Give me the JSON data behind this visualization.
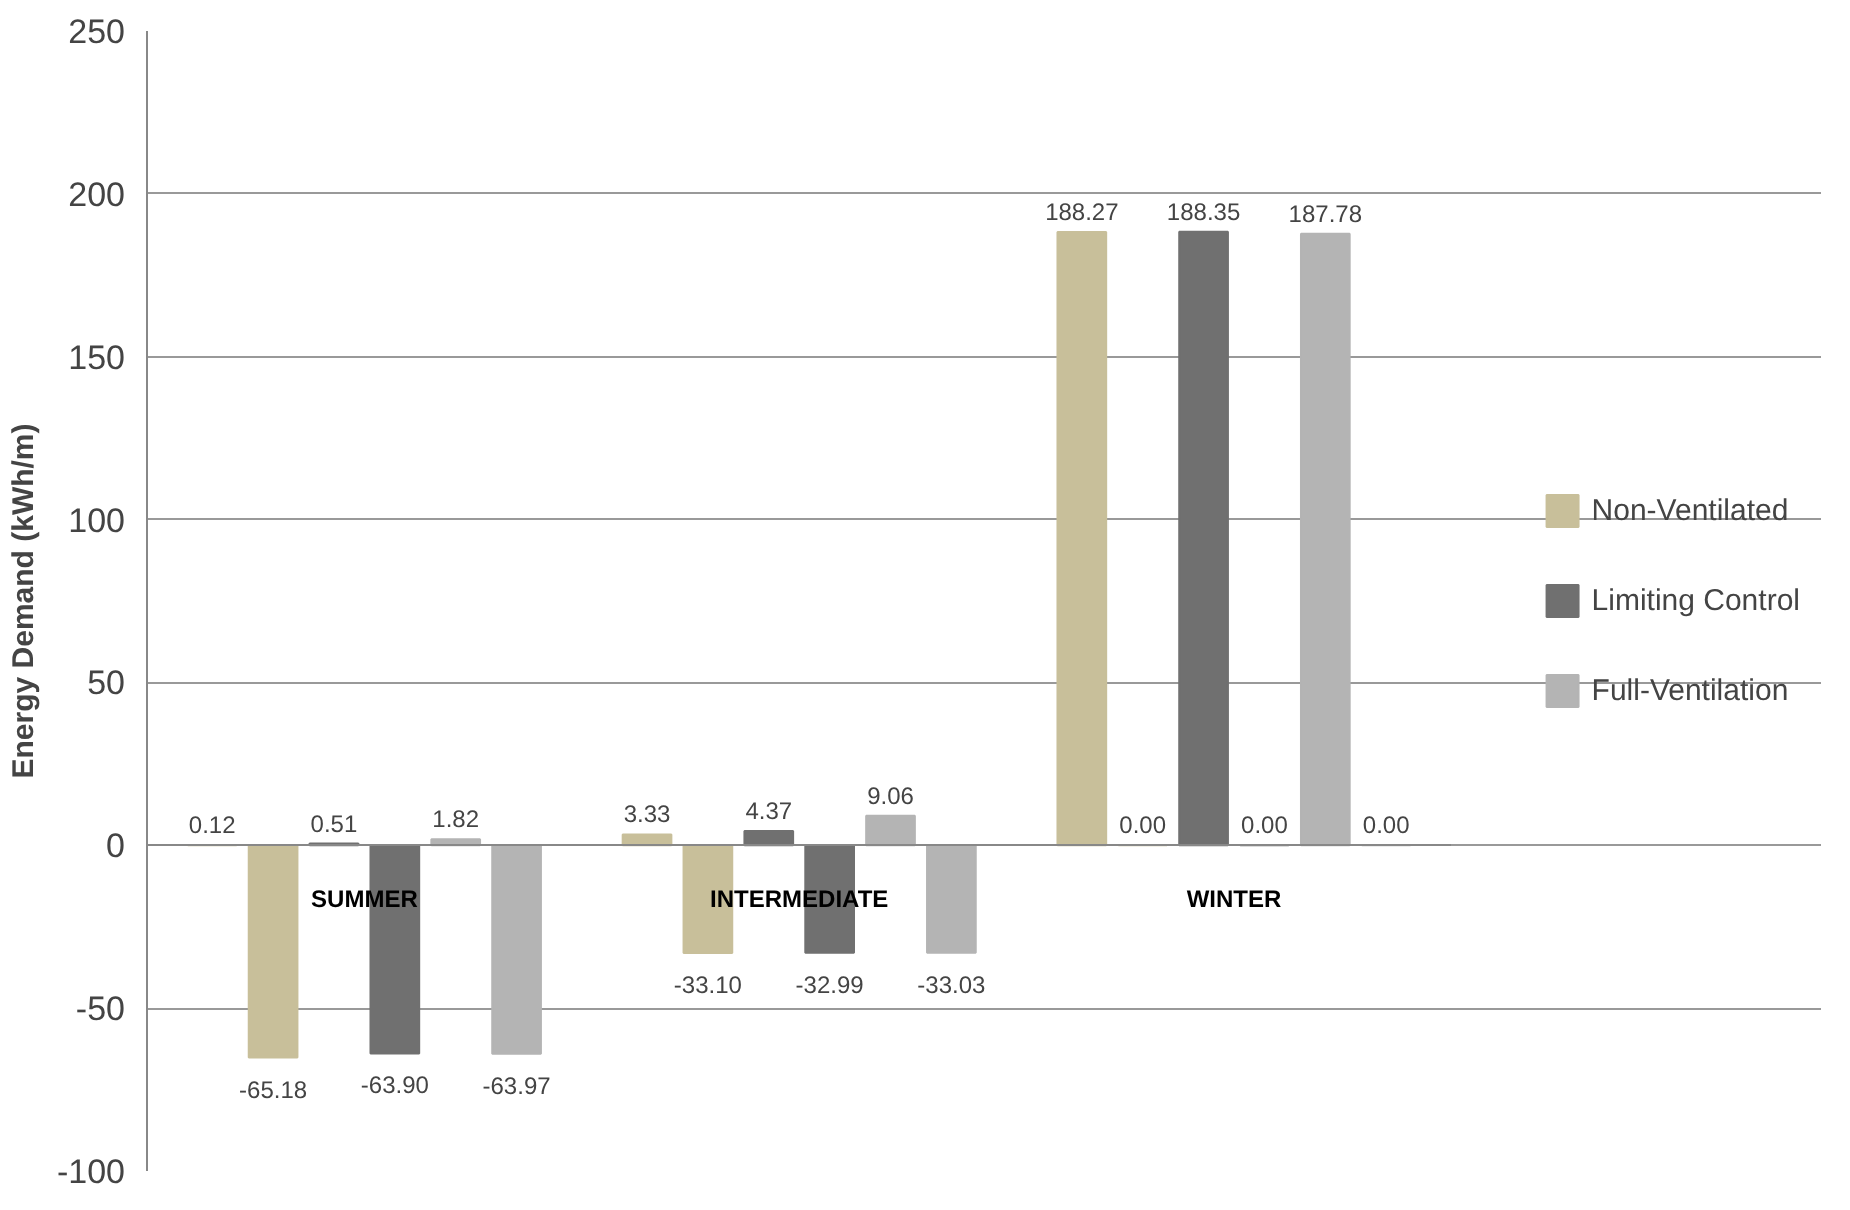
{
  "chart_data": {
    "type": "bar",
    "ylabel": "Energy Demand (kWh/m)",
    "categories": [
      "SUMMER",
      "INTERMEDIATE",
      "WINTER"
    ],
    "series": [
      {
        "name": "Non-Ventilated",
        "color": "#c8bf9a",
        "values": [
          0.12,
          3.33,
          188.27
        ],
        "value_labels": [
          "0.12",
          "3.33",
          "188.27"
        ]
      },
      {
        "color": "#c8bf9a",
        "values": [
          -65.18,
          -33.1,
          0.0
        ],
        "value_labels": [
          "-65.18",
          "-33.10",
          "0.00"
        ]
      },
      {
        "name": "Limiting Control",
        "color": "#707070",
        "values": [
          0.51,
          4.37,
          188.35
        ],
        "value_labels": [
          "0.51",
          "4.37",
          "188.35"
        ]
      },
      {
        "color": "#707070",
        "values": [
          -63.9,
          -32.99,
          0.0
        ],
        "value_labels": [
          "-63.90",
          "-32.99",
          "0.00"
        ]
      },
      {
        "name": "Full-Ventilation",
        "color": "#b4b4b4",
        "values": [
          1.82,
          9.06,
          187.78
        ],
        "value_labels": [
          "1.82",
          "9.06",
          "187.78"
        ]
      },
      {
        "color": "#b4b4b4",
        "values": [
          -63.97,
          -33.03,
          0.0
        ],
        "value_labels": [
          "-63.97",
          "-33.03",
          "0.00"
        ]
      }
    ],
    "ylim": [
      -100,
      250
    ],
    "yticks": [
      -100,
      -50,
      0,
      50,
      100,
      150,
      200,
      250
    ],
    "grid": "y",
    "legend": "right"
  }
}
